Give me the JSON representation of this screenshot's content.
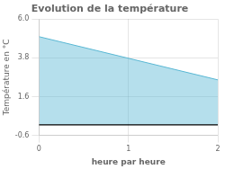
{
  "chart_data": {
    "type": "area",
    "title": "Evolution de la température",
    "xlabel": "heure par heure",
    "ylabel": "Température en °C",
    "x": [
      0,
      2
    ],
    "values": [
      5.0,
      2.55
    ],
    "baseline": 0,
    "color": "#5bb8d4",
    "xlim": [
      0,
      2
    ],
    "ylim": [
      -0.6,
      6.0
    ],
    "xticks": [
      0,
      1,
      2
    ],
    "yticks": [
      -0.6,
      1.6,
      3.8,
      {
        "value": 6.0,
        "label": "6.0"
      }
    ],
    "grid": true
  }
}
